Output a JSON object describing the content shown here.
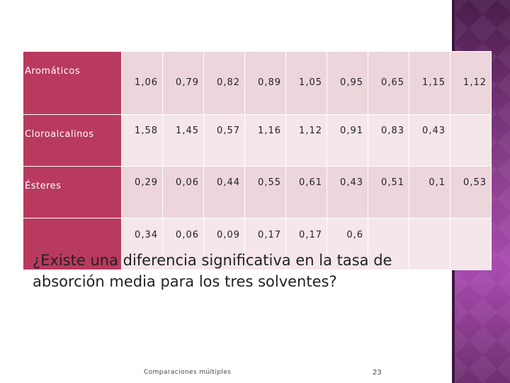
{
  "table": {
    "rows": [
      {
        "label": "Aromáticos",
        "values": [
          "1,06",
          "0,79",
          "0,82",
          "0,89",
          "1,05",
          "0,95",
          "0,65",
          "1,15",
          "1,12"
        ]
      },
      {
        "label": "Cloroalcalinos",
        "values": [
          "1,58",
          "1,45",
          "0,57",
          "1,16",
          "1,12",
          "0,91",
          "0,83",
          "0,43",
          ""
        ]
      },
      {
        "label": "Ésteres",
        "values": [
          "0,29",
          "0,06",
          "0,44",
          "0,55",
          "0,61",
          "0,43",
          "0,51",
          "0,1",
          "0,53"
        ]
      },
      {
        "label": "",
        "values": [
          "0,34",
          "0,06",
          "0,09",
          "0,17",
          "0,17",
          "0,6",
          "",
          "",
          ""
        ]
      }
    ]
  },
  "question": "¿Existe una diferencia significativa en la tasa de absorción media para los tres solventes?",
  "footer": {
    "label": "Comparaciones múltiples",
    "page_number": "23"
  },
  "colors": {
    "label_cell": "#b83a5f",
    "value_cell": "#edd5dc",
    "side_panel": "#8a3f8d"
  }
}
